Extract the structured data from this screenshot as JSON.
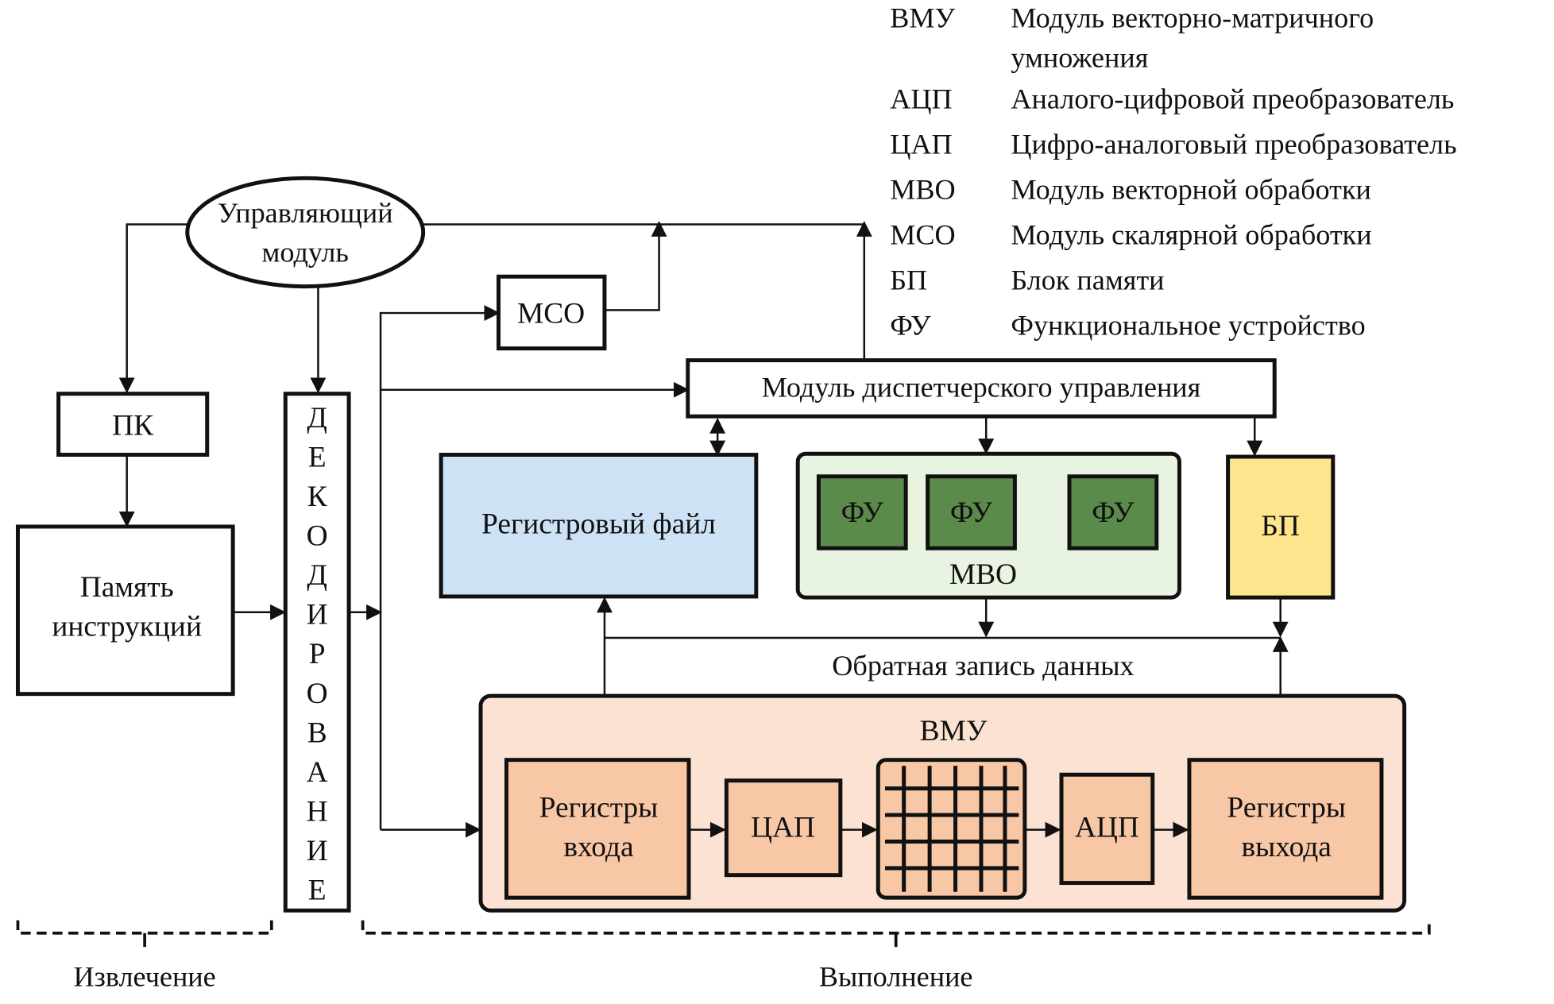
{
  "legend": [
    {
      "abbr": "ВМУ",
      "desc_line1": "Модуль векторно-матричного",
      "desc_line2": "умножения"
    },
    {
      "abbr": "АЦП",
      "desc_line1": "Аналого-цифровой преобразователь"
    },
    {
      "abbr": "ЦАП",
      "desc_line1": "Цифро-аналоговый преобразователь"
    },
    {
      "abbr": "МВО",
      "desc_line1": "Модуль векторной обработки"
    },
    {
      "abbr": "МСО",
      "desc_line1": "Модуль скалярной обработки"
    },
    {
      "abbr": "БП",
      "desc_line1": "Блок памяти"
    },
    {
      "abbr": "ФУ",
      "desc_line1": "Функциональное устройство"
    }
  ],
  "nodes": {
    "control_line1": "Управляющий",
    "control_line2": "модуль",
    "pc": "ПК",
    "imem_line1": "Память",
    "imem_line2": "инструкций",
    "decode_letters": [
      "Д",
      "Е",
      "К",
      "О",
      "Д",
      "И",
      "Р",
      "О",
      "В",
      "А",
      "Н",
      "И",
      "Е"
    ],
    "mso": "МСО",
    "dispatch": "Модуль диспетчерского управления",
    "regfile": "Регистровый файл",
    "fu": "ФУ",
    "mvo": "МВО",
    "bp": "БП",
    "writeback": "Обратная запись данных",
    "vmu": "ВМУ",
    "in_regs_line1": "Регистры",
    "in_regs_line2": "входа",
    "dac": "ЦАП",
    "adc": "АЦП",
    "out_regs_line1": "Регистры",
    "out_regs_line2": "выхода"
  },
  "stages": {
    "fetch": "Извлечение",
    "execute": "Выполнение"
  },
  "colors": {
    "regfile": "#cde3f5",
    "mvo": "#e9f3e2",
    "fu": "#5b8b4b",
    "bp": "#fde48d",
    "vmu": "#fce2d2",
    "vmu_inner": "#f8c7a6"
  }
}
